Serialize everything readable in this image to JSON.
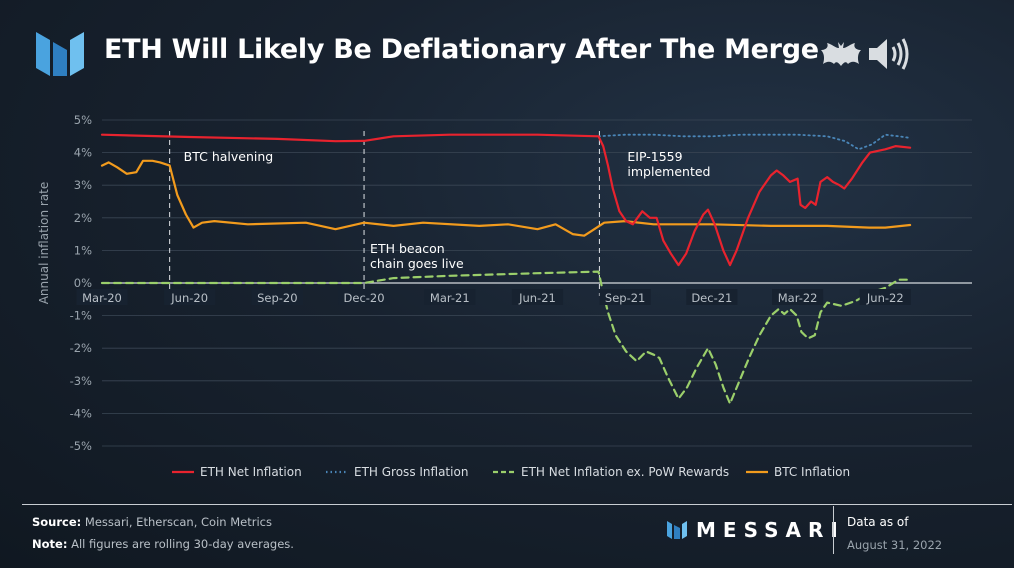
{
  "header": {
    "title": "ETH Will Likely Be Deflationary After The Merge"
  },
  "icons": {
    "logo": "messari-logo-icon",
    "bat": "bat-icon",
    "speaker": "speaker-icon"
  },
  "footer": {
    "source_label": "Source:",
    "source_text": "Messari, Etherscan, Coin Metrics",
    "note_label": "Note:",
    "note_text": "All figures are rolling 30-day averages.",
    "brand": "MESSARI",
    "data_as_of_label": "Data as of",
    "data_as_of_date": "August 31, 2022"
  },
  "chart_data": {
    "type": "line",
    "ylabel": "Annual inflation rate",
    "ylim": [
      -5,
      5
    ],
    "yticks": [
      5,
      4,
      3,
      2,
      1,
      0,
      -1,
      -2,
      -3,
      -4,
      -5
    ],
    "ytick_labels": [
      "5%",
      "4%",
      "3%",
      "2%",
      "1%",
      "0%",
      "-1%",
      "-2%",
      "-3%",
      "-4%",
      "-5%"
    ],
    "x_domain": [
      "2020-03-01",
      "2022-08-31"
    ],
    "xticks": [
      "2020-03-01",
      "2020-06-01",
      "2020-09-01",
      "2020-12-01",
      "2021-03-01",
      "2021-06-01",
      "2021-09-01",
      "2021-12-01",
      "2022-03-01",
      "2022-06-01"
    ],
    "xtick_labels": [
      "Mar-20",
      "Jun-20",
      "Sep-20",
      "Dec-20",
      "Mar-21",
      "Jun-21",
      "Sep-21",
      "Dec-21",
      "Mar-22",
      "Jun-22"
    ],
    "grid": true,
    "legend_position": "bottom",
    "annotations": [
      {
        "date": "2020-05-11",
        "text": [
          "BTC halvening"
        ]
      },
      {
        "date": "2020-12-01",
        "text": [
          "ETH beacon",
          "chain goes live"
        ]
      },
      {
        "date": "2021-08-05",
        "text": [
          "EIP-1559",
          "implemented"
        ]
      }
    ],
    "series": [
      {
        "name": "ETH Net Inflation",
        "color": "#e8232e",
        "style": "solid",
        "points": [
          [
            "2020-03-01",
            4.55
          ],
          [
            "2020-06-01",
            4.48
          ],
          [
            "2020-09-01",
            4.42
          ],
          [
            "2020-11-01",
            4.35
          ],
          [
            "2020-12-01",
            4.36
          ],
          [
            "2021-01-01",
            4.5
          ],
          [
            "2021-03-01",
            4.55
          ],
          [
            "2021-06-01",
            4.55
          ],
          [
            "2021-08-04",
            4.5
          ],
          [
            "2021-08-09",
            4.2
          ],
          [
            "2021-08-14",
            3.6
          ],
          [
            "2021-08-19",
            2.9
          ],
          [
            "2021-08-26",
            2.2
          ],
          [
            "2021-09-02",
            1.9
          ],
          [
            "2021-09-09",
            1.8
          ],
          [
            "2021-09-14",
            2.0
          ],
          [
            "2021-09-19",
            2.2
          ],
          [
            "2021-09-27",
            2.0
          ],
          [
            "2021-10-04",
            2.0
          ],
          [
            "2021-10-11",
            1.3
          ],
          [
            "2021-10-19",
            0.9
          ],
          [
            "2021-10-27",
            0.55
          ],
          [
            "2021-11-04",
            0.9
          ],
          [
            "2021-11-13",
            1.6
          ],
          [
            "2021-11-22",
            2.1
          ],
          [
            "2021-11-27",
            2.25
          ],
          [
            "2021-12-04",
            1.8
          ],
          [
            "2021-12-13",
            1.0
          ],
          [
            "2021-12-20",
            0.55
          ],
          [
            "2021-12-27",
            1.0
          ],
          [
            "2022-01-08",
            2.0
          ],
          [
            "2022-01-20",
            2.8
          ],
          [
            "2022-02-01",
            3.3
          ],
          [
            "2022-02-07",
            3.45
          ],
          [
            "2022-02-14",
            3.3
          ],
          [
            "2022-02-21",
            3.1
          ],
          [
            "2022-03-01",
            3.2
          ],
          [
            "2022-03-04",
            2.4
          ],
          [
            "2022-03-09",
            2.3
          ],
          [
            "2022-03-15",
            2.5
          ],
          [
            "2022-03-20",
            2.4
          ],
          [
            "2022-03-25",
            3.1
          ],
          [
            "2022-04-01",
            3.25
          ],
          [
            "2022-04-07",
            3.1
          ],
          [
            "2022-04-14",
            3.0
          ],
          [
            "2022-04-19",
            2.9
          ],
          [
            "2022-04-27",
            3.2
          ],
          [
            "2022-05-08",
            3.7
          ],
          [
            "2022-05-16",
            4.0
          ],
          [
            "2022-06-01",
            4.1
          ],
          [
            "2022-06-12",
            4.2
          ],
          [
            "2022-06-27",
            4.15
          ]
        ]
      },
      {
        "name": "ETH Gross Inflation",
        "color": "#4a86b8",
        "style": "dotted",
        "points": [
          [
            "2021-08-04",
            4.5
          ],
          [
            "2021-09-01",
            4.55
          ],
          [
            "2021-10-01",
            4.55
          ],
          [
            "2021-11-01",
            4.5
          ],
          [
            "2021-12-01",
            4.5
          ],
          [
            "2022-01-01",
            4.55
          ],
          [
            "2022-03-01",
            4.55
          ],
          [
            "2022-04-01",
            4.5
          ],
          [
            "2022-04-20",
            4.35
          ],
          [
            "2022-05-04",
            4.1
          ],
          [
            "2022-05-18",
            4.25
          ],
          [
            "2022-06-01",
            4.55
          ],
          [
            "2022-06-15",
            4.5
          ],
          [
            "2022-06-27",
            4.45
          ]
        ]
      },
      {
        "name": "ETH Net Inflation ex. PoW Rewards",
        "color": "#9bcf6b",
        "style": "dashed",
        "points": [
          [
            "2020-03-01",
            0.0
          ],
          [
            "2020-06-01",
            0.0
          ],
          [
            "2020-09-01",
            0.0
          ],
          [
            "2020-12-01",
            0.0
          ],
          [
            "2021-01-01",
            0.15
          ],
          [
            "2021-03-01",
            0.22
          ],
          [
            "2021-06-01",
            0.3
          ],
          [
            "2021-08-04",
            0.35
          ],
          [
            "2021-08-09",
            -0.3
          ],
          [
            "2021-08-14",
            -0.9
          ],
          [
            "2021-08-22",
            -1.6
          ],
          [
            "2021-09-02",
            -2.1
          ],
          [
            "2021-09-13",
            -2.4
          ],
          [
            "2021-09-23",
            -2.1
          ],
          [
            "2021-10-01",
            -2.2
          ],
          [
            "2021-10-07",
            -2.3
          ],
          [
            "2021-10-16",
            -2.9
          ],
          [
            "2021-10-27",
            -3.55
          ],
          [
            "2021-11-05",
            -3.2
          ],
          [
            "2021-11-15",
            -2.6
          ],
          [
            "2021-11-27",
            -2.0
          ],
          [
            "2021-12-05",
            -2.5
          ],
          [
            "2021-12-13",
            -3.2
          ],
          [
            "2021-12-20",
            -3.7
          ],
          [
            "2021-12-30",
            -3.0
          ],
          [
            "2022-01-09",
            -2.3
          ],
          [
            "2022-01-20",
            -1.6
          ],
          [
            "2022-02-01",
            -1.0
          ],
          [
            "2022-02-09",
            -0.8
          ],
          [
            "2022-02-15",
            -0.95
          ],
          [
            "2022-02-21",
            -0.8
          ],
          [
            "2022-02-28",
            -1.0
          ],
          [
            "2022-03-05",
            -1.5
          ],
          [
            "2022-03-12",
            -1.7
          ],
          [
            "2022-03-19",
            -1.6
          ],
          [
            "2022-03-25",
            -0.9
          ],
          [
            "2022-04-01",
            -0.6
          ],
          [
            "2022-04-16",
            -0.7
          ],
          [
            "2022-05-01",
            -0.55
          ],
          [
            "2022-05-16",
            -0.3
          ],
          [
            "2022-06-01",
            -0.15
          ],
          [
            "2022-06-15",
            0.1
          ],
          [
            "2022-06-27",
            0.1
          ]
        ]
      },
      {
        "name": "BTC Inflation",
        "color": "#f29b1d",
        "style": "solid",
        "points": [
          [
            "2020-03-01",
            3.6
          ],
          [
            "2020-03-08",
            3.7
          ],
          [
            "2020-03-17",
            3.55
          ],
          [
            "2020-03-27",
            3.35
          ],
          [
            "2020-04-06",
            3.4
          ],
          [
            "2020-04-13",
            3.75
          ],
          [
            "2020-04-23",
            3.75
          ],
          [
            "2020-05-01",
            3.7
          ],
          [
            "2020-05-11",
            3.6
          ],
          [
            "2020-05-19",
            2.7
          ],
          [
            "2020-05-28",
            2.1
          ],
          [
            "2020-06-05",
            1.7
          ],
          [
            "2020-06-14",
            1.85
          ],
          [
            "2020-06-27",
            1.9
          ],
          [
            "2020-08-01",
            1.8
          ],
          [
            "2020-10-01",
            1.85
          ],
          [
            "2020-11-01",
            1.65
          ],
          [
            "2020-12-01",
            1.85
          ],
          [
            "2021-01-01",
            1.75
          ],
          [
            "2021-02-01",
            1.85
          ],
          [
            "2021-04-01",
            1.75
          ],
          [
            "2021-05-01",
            1.8
          ],
          [
            "2021-06-01",
            1.65
          ],
          [
            "2021-06-20",
            1.8
          ],
          [
            "2021-07-08",
            1.5
          ],
          [
            "2021-07-20",
            1.45
          ],
          [
            "2021-07-28",
            1.6
          ],
          [
            "2021-08-10",
            1.85
          ],
          [
            "2021-09-01",
            1.9
          ],
          [
            "2021-10-01",
            1.8
          ],
          [
            "2021-12-01",
            1.8
          ],
          [
            "2022-02-01",
            1.75
          ],
          [
            "2022-04-01",
            1.75
          ],
          [
            "2022-05-15",
            1.7
          ],
          [
            "2022-06-01",
            1.7
          ],
          [
            "2022-06-27",
            1.78
          ]
        ]
      }
    ]
  }
}
